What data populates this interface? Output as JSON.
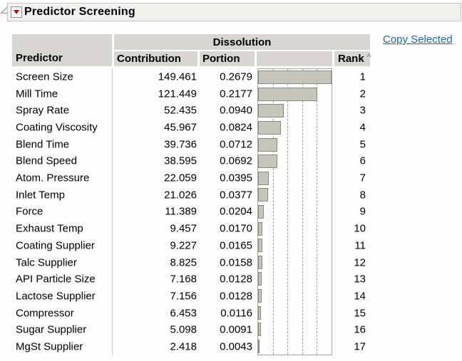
{
  "title": {
    "text": "Predictor Screening"
  },
  "icons": {
    "disclosure": "open-disclosure-triangle",
    "menu": "red-triangle-menu"
  },
  "actions": {
    "copy_selected_label": "Copy Selected"
  },
  "table": {
    "group_header": "Dissolution",
    "columns": {
      "predictor": "Predictor",
      "contribution": "Contribution",
      "portion": "Portion",
      "rank": "Rank",
      "sort_indicator": "^"
    }
  },
  "rows": [
    {
      "predictor": "Screen Size",
      "contribution": "149.461",
      "portion": "0.2679",
      "rank": "1"
    },
    {
      "predictor": "Mill Time",
      "contribution": "121.449",
      "portion": "0.2177",
      "rank": "2"
    },
    {
      "predictor": "Spray Rate",
      "contribution": "52.435",
      "portion": "0.0940",
      "rank": "3"
    },
    {
      "predictor": "Coating Viscosity",
      "contribution": "45.967",
      "portion": "0.0824",
      "rank": "4"
    },
    {
      "predictor": "Blend Time",
      "contribution": "39.736",
      "portion": "0.0712",
      "rank": "5"
    },
    {
      "predictor": "Blend Speed",
      "contribution": "38.595",
      "portion": "0.0692",
      "rank": "6"
    },
    {
      "predictor": "Atom. Pressure",
      "contribution": "22.059",
      "portion": "0.0395",
      "rank": "7"
    },
    {
      "predictor": "Inlet Temp",
      "contribution": "21.026",
      "portion": "0.0377",
      "rank": "8"
    },
    {
      "predictor": "Force",
      "contribution": "11.389",
      "portion": "0.0204",
      "rank": "9"
    },
    {
      "predictor": "Exhaust Temp",
      "contribution": "9.457",
      "portion": "0.0170",
      "rank": "10"
    },
    {
      "predictor": "Coating Supplier",
      "contribution": "9.227",
      "portion": "0.0165",
      "rank": "11"
    },
    {
      "predictor": "Talc Supplier",
      "contribution": "8.825",
      "portion": "0.0158",
      "rank": "12"
    },
    {
      "predictor": "API Particle Size",
      "contribution": "7.168",
      "portion": "0.0128",
      "rank": "13"
    },
    {
      "predictor": "Lactose Supplier",
      "contribution": "7.156",
      "portion": "0.0128",
      "rank": "14"
    },
    {
      "predictor": "Compressor",
      "contribution": "6.453",
      "portion": "0.0116",
      "rank": "15"
    },
    {
      "predictor": "Sugar Supplier",
      "contribution": "5.098",
      "portion": "0.0091",
      "rank": "16"
    },
    {
      "predictor": "MgSt Supplier",
      "contribution": "2.418",
      "portion": "0.0043",
      "rank": "17"
    }
  ],
  "chart_data": {
    "type": "bar",
    "orientation": "horizontal",
    "title": "Dissolution contribution by predictor",
    "categories": [
      "Screen Size",
      "Mill Time",
      "Spray Rate",
      "Coating Viscosity",
      "Blend Time",
      "Blend Speed",
      "Atom. Pressure",
      "Inlet Temp",
      "Force",
      "Exhaust Temp",
      "Coating Supplier",
      "Talc Supplier",
      "API Particle Size",
      "Lactose Supplier",
      "Compressor",
      "Sugar Supplier",
      "MgSt Supplier"
    ],
    "values": [
      149.461,
      121.449,
      52.435,
      45.967,
      39.736,
      38.595,
      22.059,
      21.026,
      11.389,
      9.457,
      9.227,
      8.825,
      7.168,
      7.156,
      6.453,
      5.098,
      2.418
    ],
    "xlim": [
      0,
      150
    ],
    "gridlines": [
      30,
      60,
      90,
      120
    ],
    "grid_style": "dashed",
    "legend": "none"
  },
  "colors": {
    "bar_fill": "#c6c5b9",
    "bar_border": "#8b8a7d",
    "header_bg": "#d7d6d2",
    "link_blue": "#1467c8",
    "menu_triangle_red": "#cc0000",
    "chart_border": "#a7a69e",
    "gridline": "#a19f98",
    "title_bar_bg": "#f0f0ee"
  }
}
